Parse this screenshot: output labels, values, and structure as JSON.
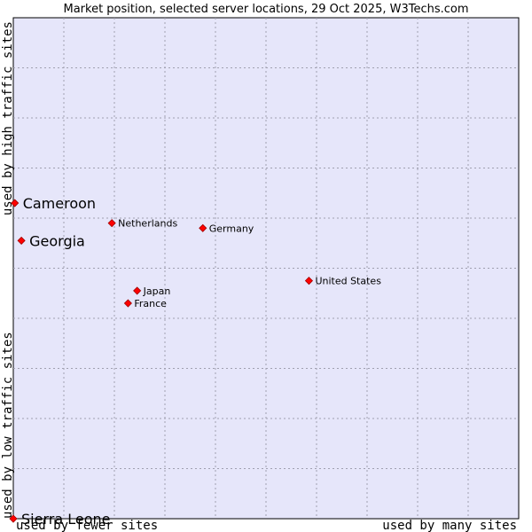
{
  "chart_data": {
    "type": "scatter",
    "title": "Market position, selected server locations, 29 Oct 2025, W3Techs.com",
    "xlabel_low": "used by fewer sites",
    "xlabel_high": "used by many sites",
    "ylabel_low": "used by low traffic sites",
    "ylabel_high": "used by high traffic sites",
    "xlim": [
      0,
      100
    ],
    "ylim": [
      0,
      100
    ],
    "grid": true,
    "colors": {
      "background": "#e6e6fa",
      "point": "#ff0000",
      "point_stroke": "#a00000",
      "frame": "#000000"
    },
    "points": [
      {
        "label": "Cameroon",
        "x": 0.3,
        "y": 63.0,
        "emphasis": true
      },
      {
        "label": "Georgia",
        "x": 1.6,
        "y": 55.5,
        "emphasis": true
      },
      {
        "label": "Sierra Leone",
        "x": 0.0,
        "y": 0.0,
        "emphasis": true
      },
      {
        "label": "Netherlands",
        "x": 19.5,
        "y": 59.0,
        "emphasis": false
      },
      {
        "label": "Germany",
        "x": 37.5,
        "y": 58.0,
        "emphasis": false
      },
      {
        "label": "United States",
        "x": 58.5,
        "y": 47.5,
        "emphasis": false
      },
      {
        "label": "Japan",
        "x": 24.5,
        "y": 45.5,
        "emphasis": false
      },
      {
        "label": "France",
        "x": 22.7,
        "y": 43.0,
        "emphasis": false
      }
    ]
  }
}
